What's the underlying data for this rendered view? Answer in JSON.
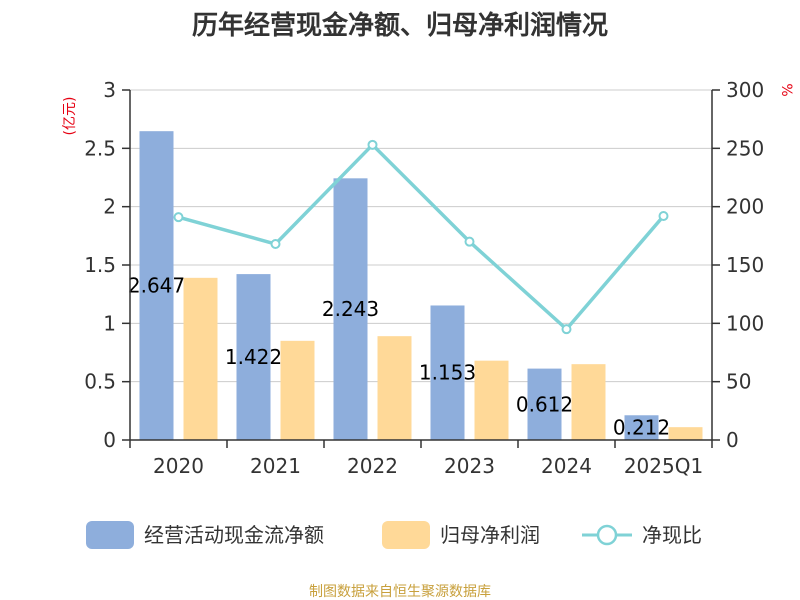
{
  "chart_data": {
    "type": "bar",
    "title": "历年经营现金净额、归母净利润情况",
    "categories": [
      "2020",
      "2021",
      "2022",
      "2023",
      "2024",
      "2025Q1"
    ],
    "y_left": {
      "unit": "(亿元)",
      "ylim": [
        0,
        3
      ],
      "ticks": [
        "0",
        "0.5",
        "1",
        "1.5",
        "2",
        "2.5",
        "3"
      ]
    },
    "y_right": {
      "unit": "%",
      "ylim": [
        0,
        300
      ],
      "ticks": [
        "0",
        "50",
        "100",
        "150",
        "200",
        "250",
        "300"
      ]
    },
    "grid": true,
    "legend_position": "bottom",
    "series": [
      {
        "name": "经营活动现金流净额",
        "kind": "bar",
        "axis": "left",
        "color": "#8eaedc",
        "values": [
          2.647,
          1.422,
          2.243,
          1.153,
          0.612,
          0.212
        ],
        "labels": [
          "2.647",
          "1.422",
          "2.243",
          "1.153",
          "0.612",
          "0.212"
        ]
      },
      {
        "name": "归母净利润",
        "kind": "bar",
        "axis": "left",
        "color": "#ffd998",
        "values": [
          1.39,
          0.85,
          0.89,
          0.68,
          0.65,
          0.11
        ]
      },
      {
        "name": "净现比",
        "kind": "line",
        "axis": "right",
        "color": "#7fd2d6",
        "values": [
          191,
          168,
          253,
          170,
          95,
          192
        ]
      }
    ],
    "source": "制图数据来自恒生聚源数据库"
  }
}
